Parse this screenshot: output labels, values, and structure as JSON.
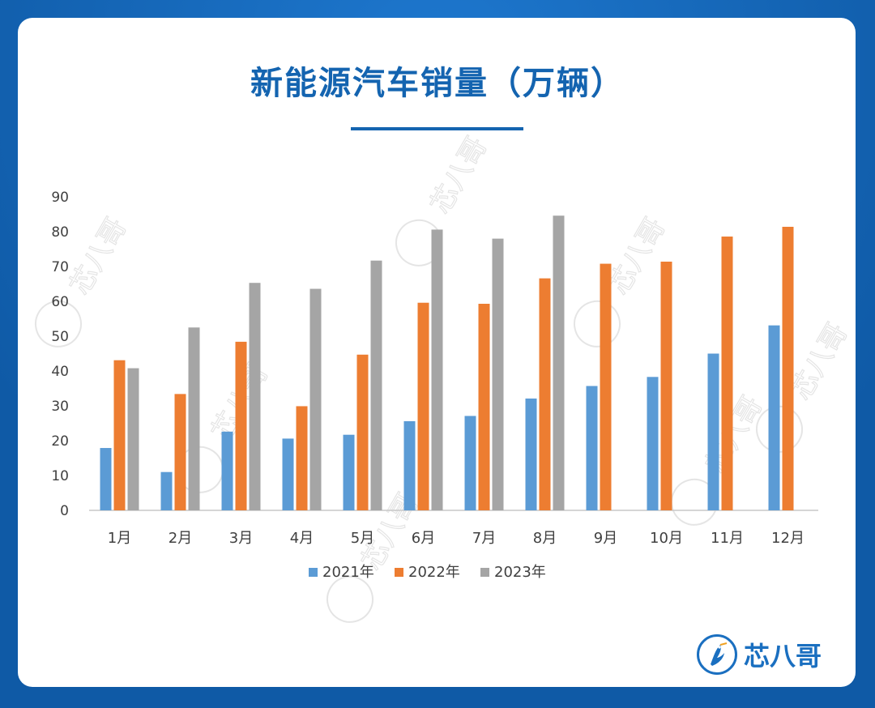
{
  "title": "新能源汽车销量（万辆）",
  "brand": {
    "name": "芯八哥",
    "icon": "kingfisher-logo-icon"
  },
  "watermark": {
    "text": "芯八哥"
  },
  "colors": {
    "series_2021": "#5b9bd5",
    "series_2022": "#ed7d31",
    "series_2023": "#a5a5a5",
    "title": "#1464b0",
    "background": "#1466b8"
  },
  "chart_data": {
    "type": "bar",
    "title": "新能源汽车销量（万辆）",
    "xlabel": "",
    "ylabel": "",
    "ylim": [
      0,
      90
    ],
    "yticks": [
      "0",
      "10",
      "20",
      "30",
      "40",
      "50",
      "60",
      "70",
      "80",
      "90"
    ],
    "grid": false,
    "legend": "bottom",
    "categories": [
      "1月",
      "2月",
      "3月",
      "4月",
      "5月",
      "6月",
      "7月",
      "8月",
      "9月",
      "10月",
      "11月",
      "12月"
    ],
    "series": [
      {
        "name": "2021年",
        "color": "#5b9bd5",
        "values": [
          17.9,
          11,
          22.6,
          20.6,
          21.7,
          25.6,
          27.1,
          32.1,
          35.7,
          38.3,
          45,
          53.1
        ]
      },
      {
        "name": "2022年",
        "color": "#ed7d31",
        "values": [
          43.1,
          33.4,
          48.4,
          29.9,
          44.7,
          59.6,
          59.3,
          66.6,
          70.8,
          71.4,
          78.6,
          81.4
        ]
      },
      {
        "name": "2023年",
        "color": "#a5a5a5",
        "values": [
          40.8,
          52.5,
          65.3,
          63.6,
          71.7,
          80.6,
          78,
          84.6,
          null,
          null,
          null,
          null
        ]
      }
    ]
  }
}
